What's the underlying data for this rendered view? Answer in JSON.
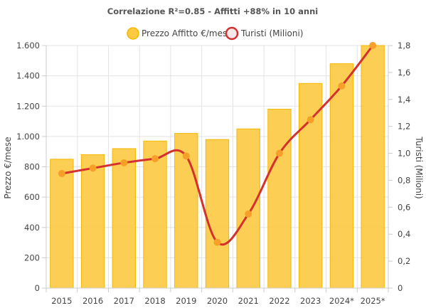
{
  "chart_data": {
    "type": "bar",
    "title": "Correlazione R²=0.85 - Affitti +88% in 10 anni",
    "categories": [
      "2015",
      "2016",
      "2017",
      "2018",
      "2019",
      "2020",
      "2021",
      "2022",
      "2023",
      "2024*",
      "2025*"
    ],
    "series": [
      {
        "name": "Prezzo Affitto €/mese",
        "type": "bar",
        "axis": "left",
        "color": "#FCC940",
        "border_color": "#F5B800",
        "values": [
          850,
          880,
          920,
          970,
          1020,
          980,
          1050,
          1180,
          1350,
          1480,
          1600
        ]
      },
      {
        "name": "Turisti (Milioni)",
        "type": "line",
        "axis": "right",
        "color": "#D3312D",
        "marker_color": "#F6A02A",
        "values": [
          0.85,
          0.89,
          0.93,
          0.96,
          0.98,
          0.34,
          0.55,
          1.0,
          1.25,
          1.5,
          1.8
        ]
      }
    ],
    "y_left": {
      "label": "Prezzo €/mese",
      "range": [
        0,
        1600
      ],
      "ticks": [
        0,
        200,
        400,
        600,
        800,
        1000,
        1200,
        1400,
        1600
      ],
      "tick_labels": [
        "0",
        "200",
        "400",
        "600",
        "800",
        "1.000",
        "1.200",
        "1.400",
        "1.600"
      ]
    },
    "y_right": {
      "label": "Turisti (Milioni)",
      "range": [
        0,
        1.8
      ],
      "ticks": [
        0,
        0.2,
        0.4,
        0.6,
        0.8,
        1.0,
        1.2,
        1.4,
        1.6,
        1.8
      ],
      "tick_labels": [
        "0",
        "0,2",
        "0,4",
        "0,6",
        "0,8",
        "1,0",
        "1,2",
        "1,4",
        "1,6",
        "1,8"
      ]
    },
    "grid": true,
    "legend": "top-center"
  }
}
